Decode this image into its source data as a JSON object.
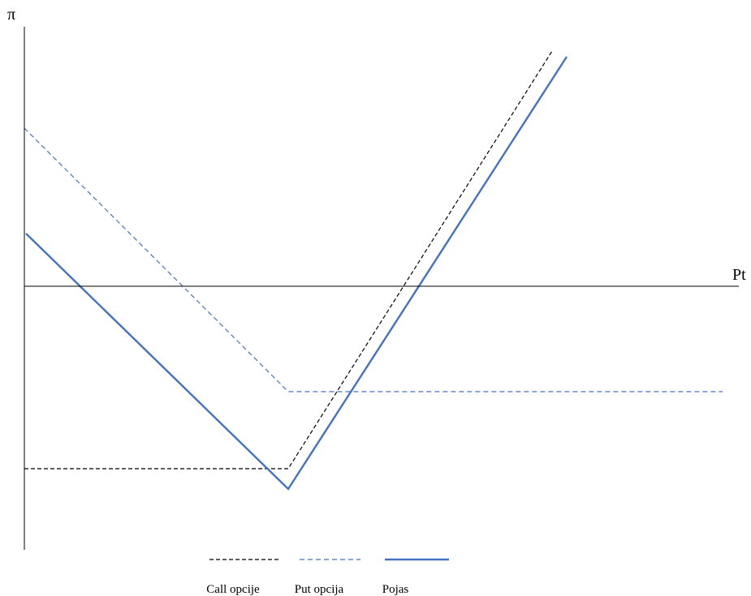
{
  "chart_data": {
    "type": "line",
    "title": "",
    "xlabel": "Pt",
    "ylabel": "π",
    "xlim": [
      0,
      86
    ],
    "ylim": [
      -32,
      32
    ],
    "grid": false,
    "legend_placement": "bottom",
    "series": [
      {
        "name": "Call opcije",
        "color": "#000000",
        "style": "dashed",
        "x": [
          0,
          32.5,
          65
        ],
        "y": [
          -22.5,
          -22.5,
          29
        ]
      },
      {
        "name": "Put opcija",
        "color": "#4472C4",
        "style": "dashed",
        "x": [
          0,
          32.5,
          86
        ],
        "y": [
          19.5,
          -13,
          -13
        ]
      },
      {
        "name": "Pojas",
        "color": "#4472C4",
        "style": "solid",
        "x": [
          0.2,
          32.5,
          66.8
        ],
        "y": [
          6.5,
          -25,
          28.3
        ]
      }
    ]
  }
}
